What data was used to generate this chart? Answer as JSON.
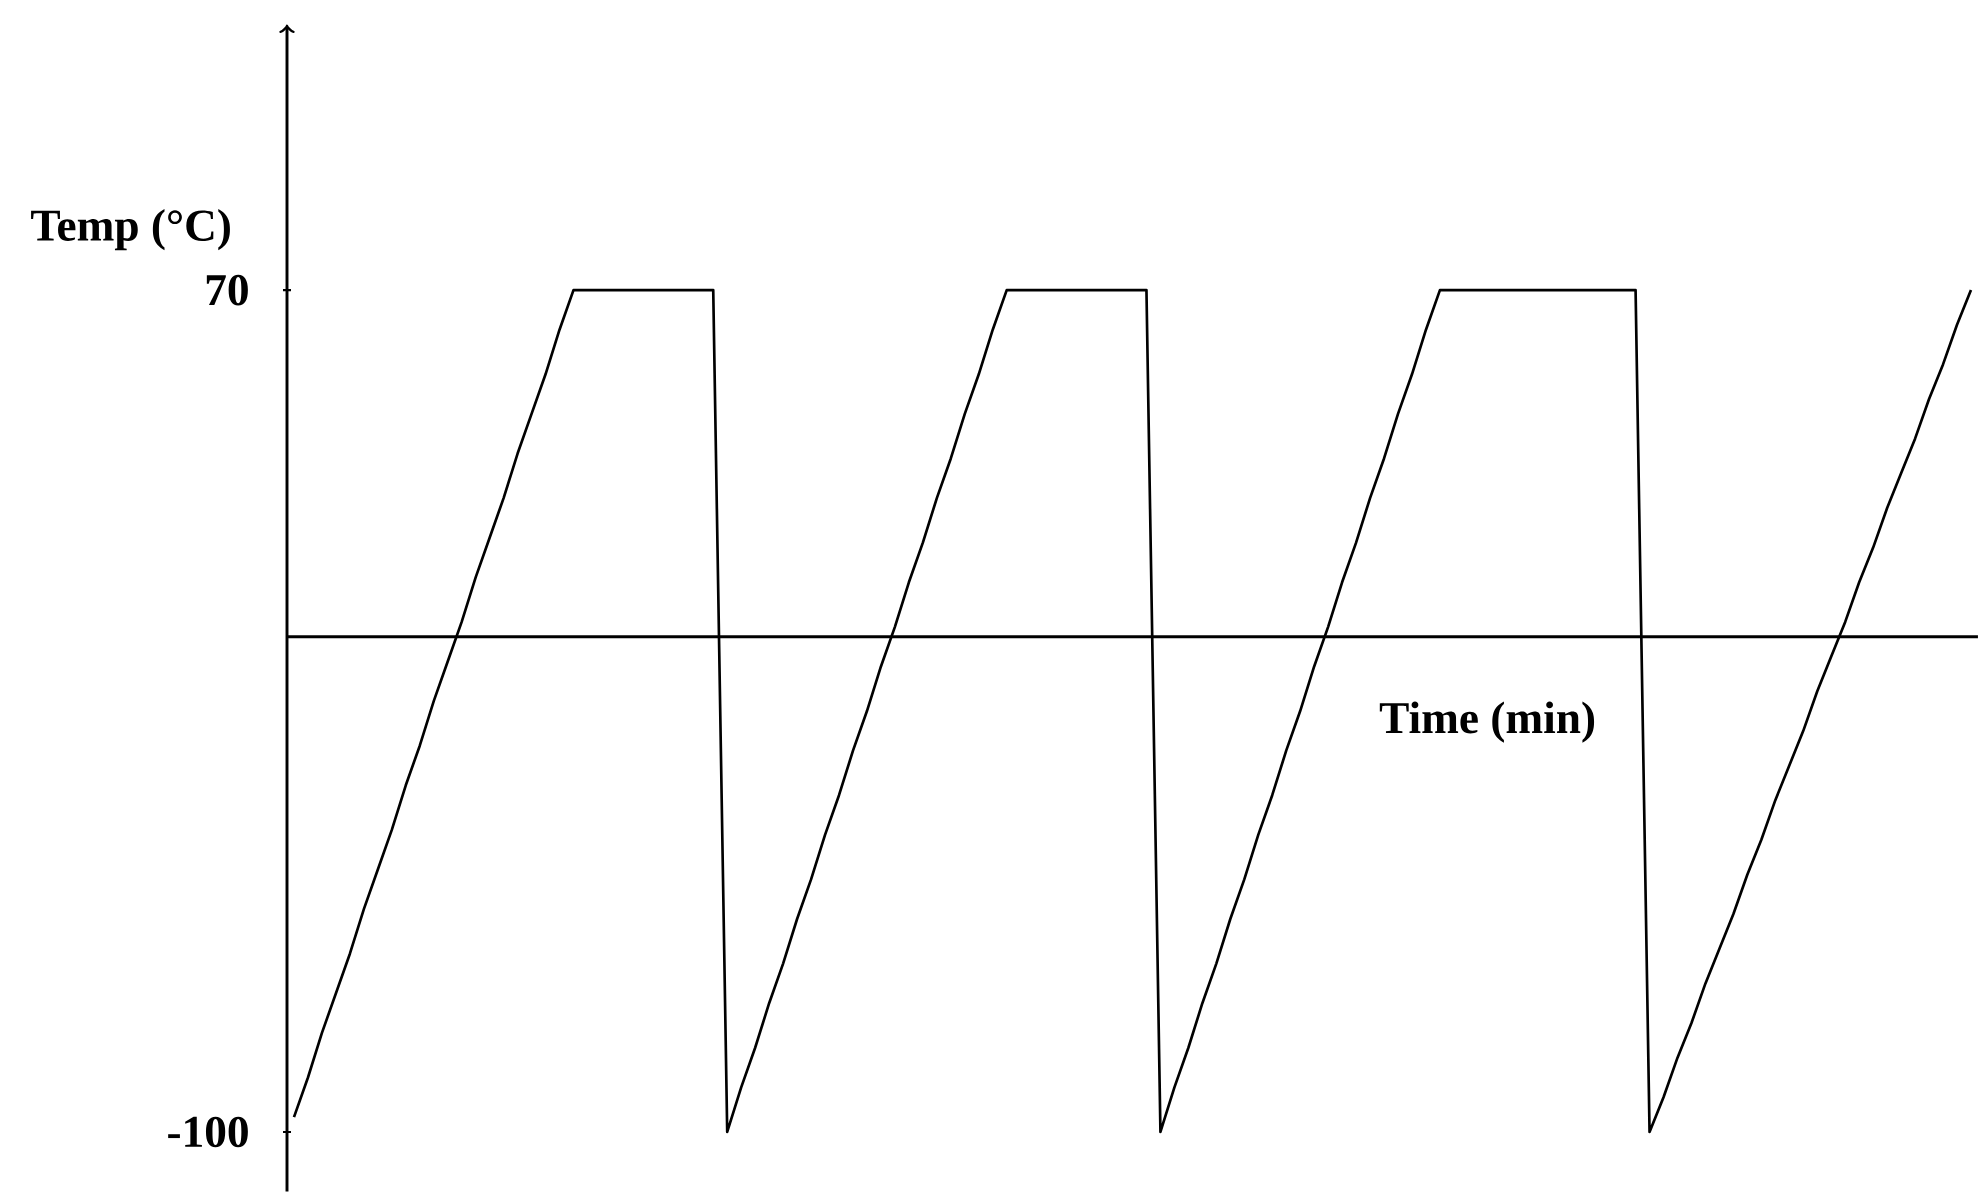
{
  "chart_data": {
    "type": "line",
    "xlabel": "Time (min)",
    "ylabel": "Temp (°C)",
    "categories": [
      null,
      null,
      null,
      null,
      null,
      null,
      null,
      null,
      null,
      null,
      null,
      null,
      null,
      null,
      null,
      null,
      null,
      null,
      null,
      null,
      null,
      null,
      null,
      null,
      null,
      null,
      null,
      null,
      null,
      null,
      null,
      null,
      null,
      null,
      null,
      null,
      null,
      null,
      null,
      null,
      null,
      null,
      null,
      null,
      null,
      null,
      null,
      null,
      null,
      null,
      null,
      null,
      null,
      null,
      null,
      null,
      null,
      null,
      null,
      null,
      null,
      null,
      null,
      null,
      null,
      null,
      null,
      null,
      null,
      null,
      null,
      null,
      null,
      null,
      null,
      null,
      null,
      null,
      null,
      null,
      null,
      null,
      null,
      null,
      null,
      null,
      null,
      null,
      null,
      null,
      null,
      null,
      null,
      null,
      null,
      null,
      null,
      null,
      null,
      null,
      null,
      null,
      null,
      null,
      null,
      null,
      null,
      null,
      null,
      null,
      null,
      null,
      null,
      null,
      null,
      null,
      null,
      null,
      null,
      null,
      null
    ],
    "series": [
      {
        "color": "#000000",
        "values": [
          -97,
          -89,
          -80,
          -72,
          -64,
          -55,
          -47,
          -39,
          -30,
          -22,
          -13,
          -5,
          3,
          12,
          20,
          28,
          37,
          45,
          53,
          62,
          70,
          70,
          70,
          70,
          70,
          70,
          70,
          70,
          70,
          70,
          70,
          -100,
          -91,
          -83,
          -74,
          -66,
          -57,
          -49,
          -40,
          -32,
          -23,
          -15,
          -6,
          2,
          11,
          19,
          28,
          36,
          45,
          53,
          62,
          70,
          70,
          70,
          70,
          70,
          70,
          70,
          70,
          70,
          70,
          70,
          -100,
          -91,
          -83,
          -74,
          -66,
          -57,
          -49,
          -40,
          -32,
          -23,
          -15,
          -6,
          2,
          11,
          19,
          28,
          36,
          45,
          53,
          62,
          70,
          70,
          70,
          70,
          70,
          70,
          70,
          70,
          70,
          70,
          70,
          70,
          70,
          70,
          70,
          -100,
          -93,
          -85,
          -78,
          -70,
          -63,
          -56,
          -48,
          -41,
          -33,
          -26,
          -19,
          -11,
          -4,
          3,
          11,
          18,
          26,
          33,
          40,
          48,
          55,
          63,
          70
        ]
      }
    ],
    "ylim": [
      -112,
      122
    ],
    "yticks": [
      -100,
      70
    ],
    "marker": "none",
    "line_style": "solid"
  }
}
